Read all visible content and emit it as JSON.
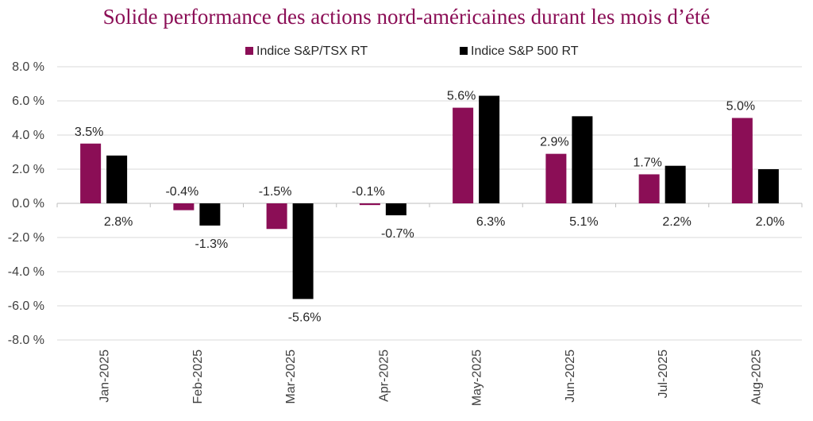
{
  "chart_data": {
    "type": "bar",
    "title": "Solide performance des actions nord-américaines durant les mois d’été",
    "categories": [
      "Jan-2025",
      "Feb-2025",
      "Mar-2025",
      "Apr-2025",
      "May-2025",
      "Jun-2025",
      "Jul-2025",
      "Aug-2025"
    ],
    "series": [
      {
        "name": "Indice S&P/TSX RT",
        "color": "#8b0e56",
        "values": [
          3.5,
          -0.4,
          -1.5,
          -0.1,
          5.6,
          2.9,
          1.7,
          5.0
        ],
        "labels": [
          "3.5%",
          "-0.4%",
          "-1.5%",
          "-0.1%",
          "5.6%",
          "2.9%",
          "1.7%",
          "5.0%"
        ]
      },
      {
        "name": "Indice S&P 500 RT",
        "color": "#000000",
        "values": [
          2.8,
          -1.3,
          -5.6,
          -0.7,
          6.3,
          5.1,
          2.2,
          2.0
        ],
        "labels": [
          "2.8%",
          "-1.3%",
          "-5.6%",
          "-0.7%",
          "6.3%",
          "5.1%",
          "2.2%",
          "2.0%"
        ]
      }
    ],
    "ylim": [
      -8,
      8
    ],
    "yticks": [
      8,
      6,
      4,
      2,
      0,
      -2,
      -4,
      -6,
      -8
    ],
    "ytick_labels": [
      "8.0 %",
      "6.0 %",
      "4.0 %",
      "2.0 %",
      "0.0 %",
      "-2.0 %",
      "-4.0 %",
      "-6.0 %",
      "-8.0 %"
    ],
    "xlabel": "",
    "ylabel": "",
    "grid": true,
    "legend_position": "top"
  }
}
